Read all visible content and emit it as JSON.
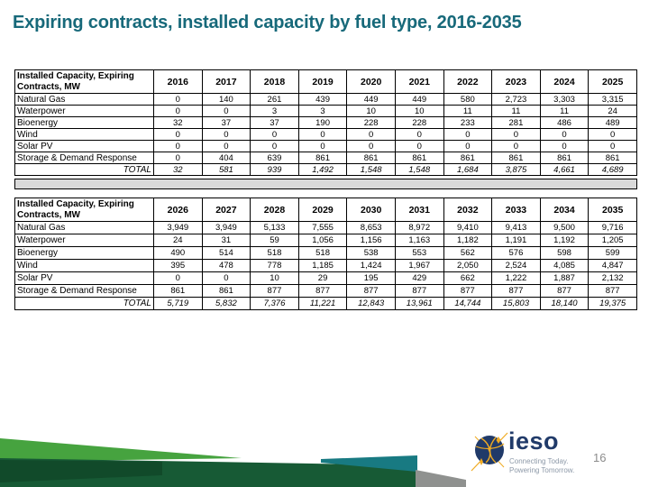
{
  "slide": {
    "title": "Expiring contracts, installed capacity by fuel type, 2016-2035",
    "page_number": "16"
  },
  "tables": [
    {
      "header_label": "Installed Capacity, Expiring Contracts, MW",
      "years": [
        "2016",
        "2017",
        "2018",
        "2019",
        "2020",
        "2021",
        "2022",
        "2023",
        "2024",
        "2025"
      ],
      "rows": [
        {
          "label": "Natural Gas",
          "values": [
            "0",
            "140",
            "261",
            "439",
            "449",
            "449",
            "580",
            "2,723",
            "3,303",
            "3,315"
          ]
        },
        {
          "label": "Waterpower",
          "values": [
            "0",
            "0",
            "3",
            "3",
            "10",
            "10",
            "11",
            "11",
            "11",
            "24"
          ]
        },
        {
          "label": "Bioenergy",
          "values": [
            "32",
            "37",
            "37",
            "190",
            "228",
            "228",
            "233",
            "281",
            "486",
            "489"
          ]
        },
        {
          "label": "Wind",
          "values": [
            "0",
            "0",
            "0",
            "0",
            "0",
            "0",
            "0",
            "0",
            "0",
            "0"
          ]
        },
        {
          "label": "Solar PV",
          "values": [
            "0",
            "0",
            "0",
            "0",
            "0",
            "0",
            "0",
            "0",
            "0",
            "0"
          ]
        },
        {
          "label": "Storage & Demand Response",
          "values": [
            "0",
            "404",
            "639",
            "861",
            "861",
            "861",
            "861",
            "861",
            "861",
            "861"
          ]
        }
      ],
      "total_label": "TOTAL",
      "total_values": [
        "32",
        "581",
        "939",
        "1,492",
        "1,548",
        "1,548",
        "1,684",
        "3,875",
        "4,661",
        "4,689"
      ]
    },
    {
      "header_label": "Installed Capacity, Expiring Contracts, MW",
      "years": [
        "2026",
        "2027",
        "2028",
        "2029",
        "2030",
        "2031",
        "2032",
        "2033",
        "2034",
        "2035"
      ],
      "rows": [
        {
          "label": "Natural Gas",
          "values": [
            "3,949",
            "3,949",
            "5,133",
            "7,555",
            "8,653",
            "8,972",
            "9,410",
            "9,413",
            "9,500",
            "9,716"
          ]
        },
        {
          "label": "Waterpower",
          "values": [
            "24",
            "31",
            "59",
            "1,056",
            "1,156",
            "1,163",
            "1,182",
            "1,191",
            "1,192",
            "1,205"
          ]
        },
        {
          "label": "Bioenergy",
          "values": [
            "490",
            "514",
            "518",
            "518",
            "538",
            "553",
            "562",
            "576",
            "598",
            "599"
          ]
        },
        {
          "label": "Wind",
          "values": [
            "395",
            "478",
            "778",
            "1,185",
            "1,424",
            "1,967",
            "2,050",
            "2,524",
            "4,085",
            "4,847"
          ]
        },
        {
          "label": "Solar PV",
          "values": [
            "0",
            "0",
            "10",
            "29",
            "195",
            "429",
            "662",
            "1,222",
            "1,887",
            "2,132"
          ]
        },
        {
          "label": "Storage & Demand Response",
          "values": [
            "861",
            "861",
            "877",
            "877",
            "877",
            "877",
            "877",
            "877",
            "877",
            "877"
          ]
        }
      ],
      "total_label": "TOTAL",
      "total_values": [
        "5,719",
        "5,832",
        "7,376",
        "11,221",
        "12,843",
        "13,961",
        "14,744",
        "15,803",
        "18,140",
        "19,375"
      ]
    }
  ],
  "logo": {
    "wordmark": "ieso",
    "tagline_line1": "Connecting Today.",
    "tagline_line2": "Powering Tomorrow."
  },
  "colors": {
    "title_teal": "#17697a",
    "table_border": "#000000",
    "separator_gray": "#d9d9d9",
    "footer_green_light": "#46a33f",
    "footer_green_dark": "#175a35",
    "footer_green_darker": "#114a2a",
    "footer_teal": "#187a82",
    "footer_gray": "#8f918f",
    "logo_navy": "#203a69",
    "logo_gold": "#f0ab22",
    "tagline_gray": "#8d99a8",
    "page_number_gray": "#8c8c8c"
  }
}
